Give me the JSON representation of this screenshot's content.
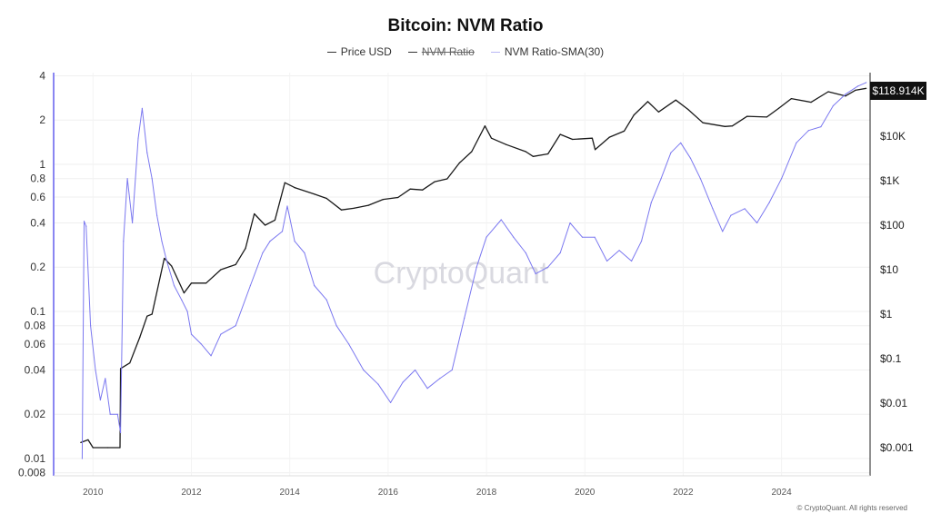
{
  "chart_data": {
    "title": "Bitcoin: NVM Ratio",
    "type": "line",
    "legend_position": "top-center",
    "legend": [
      {
        "name": "Price USD",
        "color": "#333333",
        "visible": true
      },
      {
        "name": "NVM Ratio",
        "color": "#333333",
        "visible": false
      },
      {
        "name": "NVM Ratio-SMA(30)",
        "color": "#7b78f0",
        "visible": true
      }
    ],
    "left_axis": {
      "scale": "log",
      "ticks": [
        "4",
        "2",
        "1",
        "0.8",
        "0.6",
        "0.4",
        "0.2",
        "0.1",
        "0.08",
        "0.06",
        "0.04",
        "0.02",
        "0.01",
        "0.008"
      ],
      "range": [
        0.008,
        4
      ]
    },
    "right_axis": {
      "scale": "log",
      "ticks": [
        "$10K",
        "$1K",
        "$100",
        "$10",
        "$1",
        "$0.1",
        "$0.01",
        "$0.001"
      ],
      "current_value_label": "$118.914K"
    },
    "x_axis": {
      "ticks": [
        "2010",
        "2012",
        "2014",
        "2016",
        "2018",
        "2020",
        "2022",
        "2024"
      ],
      "range": [
        2009.2,
        2025.8
      ]
    },
    "grid": true,
    "series": [
      {
        "name": "Price USD",
        "axis": "right",
        "color": "#1a1a1a",
        "points": [
          [
            2009.75,
            0.0013
          ],
          [
            2009.9,
            0.0015
          ],
          [
            2010.0,
            0.001
          ],
          [
            2010.3,
            0.001
          ],
          [
            2010.55,
            0.001
          ],
          [
            2010.56,
            0.06
          ],
          [
            2010.75,
            0.08
          ],
          [
            2010.95,
            0.3
          ],
          [
            2011.1,
            0.9
          ],
          [
            2011.2,
            1.0
          ],
          [
            2011.45,
            18
          ],
          [
            2011.6,
            12
          ],
          [
            2011.85,
            3
          ],
          [
            2012.0,
            5
          ],
          [
            2012.3,
            5
          ],
          [
            2012.6,
            10
          ],
          [
            2012.9,
            13
          ],
          [
            2013.1,
            30
          ],
          [
            2013.28,
            180
          ],
          [
            2013.5,
            100
          ],
          [
            2013.7,
            130
          ],
          [
            2013.9,
            900
          ],
          [
            2014.1,
            700
          ],
          [
            2014.5,
            500
          ],
          [
            2014.75,
            400
          ],
          [
            2015.05,
            220
          ],
          [
            2015.3,
            240
          ],
          [
            2015.6,
            280
          ],
          [
            2015.9,
            380
          ],
          [
            2016.2,
            420
          ],
          [
            2016.45,
            650
          ],
          [
            2016.7,
            620
          ],
          [
            2016.95,
            950
          ],
          [
            2017.2,
            1100
          ],
          [
            2017.45,
            2500
          ],
          [
            2017.7,
            4500
          ],
          [
            2017.97,
            17000
          ],
          [
            2018.1,
            9000
          ],
          [
            2018.4,
            6500
          ],
          [
            2018.8,
            4500
          ],
          [
            2018.95,
            3500
          ],
          [
            2019.25,
            4000
          ],
          [
            2019.5,
            11000
          ],
          [
            2019.75,
            8500
          ],
          [
            2020.15,
            9000
          ],
          [
            2020.21,
            5000
          ],
          [
            2020.5,
            9500
          ],
          [
            2020.8,
            13000
          ],
          [
            2021.0,
            30000
          ],
          [
            2021.28,
            60000
          ],
          [
            2021.5,
            35000
          ],
          [
            2021.85,
            65000
          ],
          [
            2022.1,
            40000
          ],
          [
            2022.4,
            20000
          ],
          [
            2022.85,
            16500
          ],
          [
            2023.0,
            17000
          ],
          [
            2023.3,
            28000
          ],
          [
            2023.7,
            27000
          ],
          [
            2023.95,
            43000
          ],
          [
            2024.2,
            70000
          ],
          [
            2024.6,
            58000
          ],
          [
            2024.95,
            100000
          ],
          [
            2025.3,
            80000
          ],
          [
            2025.5,
            108000
          ],
          [
            2025.72,
            118914
          ]
        ]
      },
      {
        "name": "NVM Ratio-SMA(30)",
        "axis": "left",
        "color": "#7b78f0",
        "points": [
          [
            2009.78,
            0.01
          ],
          [
            2009.82,
            0.41
          ],
          [
            2009.86,
            0.38
          ],
          [
            2009.95,
            0.08
          ],
          [
            2010.05,
            0.04
          ],
          [
            2010.15,
            0.025
          ],
          [
            2010.25,
            0.035
          ],
          [
            2010.35,
            0.02
          ],
          [
            2010.5,
            0.02
          ],
          [
            2010.56,
            0.015
          ],
          [
            2010.62,
            0.3
          ],
          [
            2010.7,
            0.8
          ],
          [
            2010.8,
            0.4
          ],
          [
            2010.92,
            1.5
          ],
          [
            2011.0,
            2.4
          ],
          [
            2011.1,
            1.2
          ],
          [
            2011.2,
            0.8
          ],
          [
            2011.3,
            0.45
          ],
          [
            2011.4,
            0.3
          ],
          [
            2011.5,
            0.22
          ],
          [
            2011.65,
            0.15
          ],
          [
            2011.8,
            0.12
          ],
          [
            2011.92,
            0.1
          ],
          [
            2012.0,
            0.07
          ],
          [
            2012.2,
            0.06
          ],
          [
            2012.4,
            0.05
          ],
          [
            2012.6,
            0.07
          ],
          [
            2012.9,
            0.08
          ],
          [
            2013.2,
            0.15
          ],
          [
            2013.45,
            0.25
          ],
          [
            2013.6,
            0.3
          ],
          [
            2013.85,
            0.35
          ],
          [
            2013.95,
            0.52
          ],
          [
            2014.1,
            0.3
          ],
          [
            2014.3,
            0.25
          ],
          [
            2014.5,
            0.15
          ],
          [
            2014.75,
            0.12
          ],
          [
            2014.95,
            0.08
          ],
          [
            2015.2,
            0.06
          ],
          [
            2015.5,
            0.04
          ],
          [
            2015.8,
            0.032
          ],
          [
            2016.05,
            0.024
          ],
          [
            2016.3,
            0.033
          ],
          [
            2016.55,
            0.04
          ],
          [
            2016.8,
            0.03
          ],
          [
            2017.05,
            0.035
          ],
          [
            2017.3,
            0.04
          ],
          [
            2017.55,
            0.09
          ],
          [
            2017.8,
            0.2
          ],
          [
            2018.0,
            0.32
          ],
          [
            2018.3,
            0.42
          ],
          [
            2018.55,
            0.32
          ],
          [
            2018.8,
            0.25
          ],
          [
            2019.0,
            0.18
          ],
          [
            2019.25,
            0.2
          ],
          [
            2019.5,
            0.25
          ],
          [
            2019.7,
            0.4
          ],
          [
            2019.95,
            0.32
          ],
          [
            2020.2,
            0.32
          ],
          [
            2020.45,
            0.22
          ],
          [
            2020.7,
            0.26
          ],
          [
            2020.95,
            0.22
          ],
          [
            2021.15,
            0.3
          ],
          [
            2021.35,
            0.55
          ],
          [
            2021.55,
            0.8
          ],
          [
            2021.75,
            1.2
          ],
          [
            2021.95,
            1.4
          ],
          [
            2022.15,
            1.1
          ],
          [
            2022.35,
            0.8
          ],
          [
            2022.6,
            0.5
          ],
          [
            2022.8,
            0.35
          ],
          [
            2022.97,
            0.45
          ],
          [
            2023.25,
            0.5
          ],
          [
            2023.5,
            0.4
          ],
          [
            2023.75,
            0.55
          ],
          [
            2024.0,
            0.8
          ],
          [
            2024.3,
            1.4
          ],
          [
            2024.55,
            1.7
          ],
          [
            2024.8,
            1.8
          ],
          [
            2025.05,
            2.5
          ],
          [
            2025.3,
            3.0
          ],
          [
            2025.55,
            3.4
          ],
          [
            2025.72,
            3.6
          ]
        ]
      }
    ]
  },
  "watermark": "CryptoQuant",
  "copyright": "© CryptoQuant. All rights reserved"
}
